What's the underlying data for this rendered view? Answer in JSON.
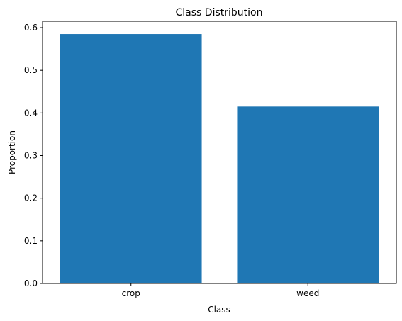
{
  "chart_data": {
    "type": "bar",
    "title": "Class Distribution",
    "xlabel": "Class",
    "ylabel": "Proportion",
    "categories": [
      "crop",
      "weed"
    ],
    "values": [
      0.585,
      0.415
    ],
    "ylim": [
      0,
      0.615
    ],
    "yticks": [
      0.0,
      0.1,
      0.2,
      0.3,
      0.4,
      0.5,
      0.6
    ],
    "ytick_labels": [
      "0.0",
      "0.1",
      "0.2",
      "0.3",
      "0.4",
      "0.5",
      "0.6"
    ],
    "bar_color": "#1f77b4",
    "grid": false,
    "legend": "none"
  }
}
